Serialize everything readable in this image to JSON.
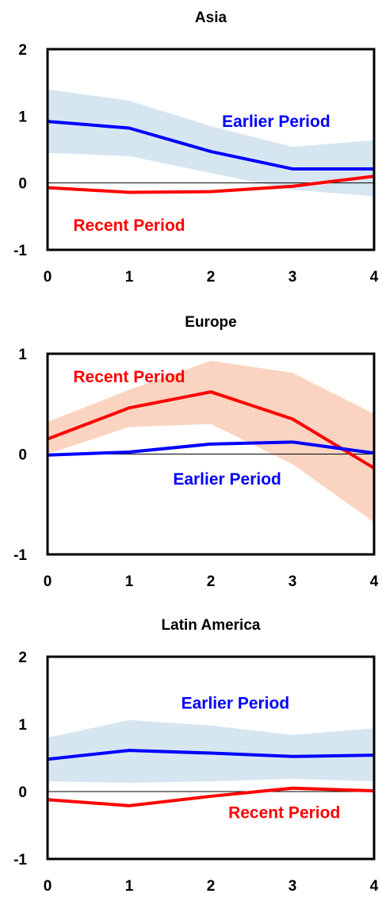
{
  "chart_data": [
    {
      "type": "line",
      "title": "Asia",
      "x": [
        0,
        1,
        2,
        3,
        4
      ],
      "xlim": [
        0,
        4
      ],
      "ylim": [
        -1,
        2
      ],
      "yticks": [
        2,
        1,
        0,
        -1
      ],
      "xticks": [
        0,
        1,
        2,
        3,
        4
      ],
      "series": [
        {
          "name": "Earlier Period",
          "color": "#0000ff",
          "values": [
            0.92,
            0.82,
            0.47,
            0.21,
            0.21
          ],
          "band_upper": [
            1.4,
            1.23,
            0.85,
            0.54,
            0.64
          ],
          "band_lower": [
            0.45,
            0.4,
            0.15,
            -0.1,
            -0.2
          ],
          "band_color": "#d6e6f1"
        },
        {
          "name": "Recent Period",
          "color": "#ff0000",
          "values": [
            -0.07,
            -0.14,
            -0.13,
            -0.05,
            0.1
          ]
        }
      ],
      "annotations": [
        {
          "text": "Earlier Period",
          "color": "#0000ff",
          "at": [
            2.8,
            0.92
          ]
        },
        {
          "text": "Recent Period",
          "color": "#ff0000",
          "at": [
            1.0,
            -0.63
          ]
        }
      ]
    },
    {
      "type": "line",
      "title": "Europe",
      "x": [
        0,
        1,
        2,
        3,
        4
      ],
      "xlim": [
        0,
        4
      ],
      "ylim": [
        -1,
        1
      ],
      "yticks": [
        1,
        0,
        -1
      ],
      "xticks": [
        0,
        1,
        2,
        3,
        4
      ],
      "series": [
        {
          "name": "Recent Period",
          "color": "#ff0000",
          "values": [
            0.15,
            0.46,
            0.62,
            0.35,
            -0.14
          ],
          "band_upper": [
            0.32,
            0.64,
            0.93,
            0.81,
            0.4
          ],
          "band_lower": [
            0.0,
            0.27,
            0.3,
            -0.1,
            -0.68
          ],
          "band_color": "#fad4c0"
        },
        {
          "name": "Earlier Period",
          "color": "#0000ff",
          "values": [
            -0.01,
            0.02,
            0.1,
            0.12,
            0.01
          ]
        }
      ],
      "annotations": [
        {
          "text": "Recent Period",
          "color": "#ff0000",
          "at": [
            1.0,
            0.77
          ]
        },
        {
          "text": "Earlier Period",
          "color": "#0000ff",
          "at": [
            2.2,
            -0.25
          ]
        }
      ]
    },
    {
      "type": "line",
      "title": "Latin America",
      "x": [
        0,
        1,
        2,
        3,
        4
      ],
      "xlim": [
        0,
        4
      ],
      "ylim": [
        -1,
        2
      ],
      "yticks": [
        2,
        1,
        0,
        -1
      ],
      "xticks": [
        0,
        1,
        2,
        3,
        4
      ],
      "series": [
        {
          "name": "Earlier Period",
          "color": "#0000ff",
          "values": [
            0.48,
            0.61,
            0.57,
            0.52,
            0.54
          ],
          "band_upper": [
            0.8,
            1.06,
            0.98,
            0.84,
            0.94
          ],
          "band_lower": [
            0.15,
            0.13,
            0.15,
            0.19,
            0.15
          ],
          "band_color": "#d6e6f1"
        },
        {
          "name": "Recent Period",
          "color": "#ff0000",
          "values": [
            -0.12,
            -0.21,
            -0.07,
            0.05,
            0.01
          ]
        }
      ],
      "annotations": [
        {
          "text": "Earlier Period",
          "color": "#0000ff",
          "at": [
            2.3,
            1.31
          ]
        },
        {
          "text": "Recent Period",
          "color": "#ff0000",
          "at": [
            2.9,
            -0.31
          ]
        }
      ]
    }
  ]
}
